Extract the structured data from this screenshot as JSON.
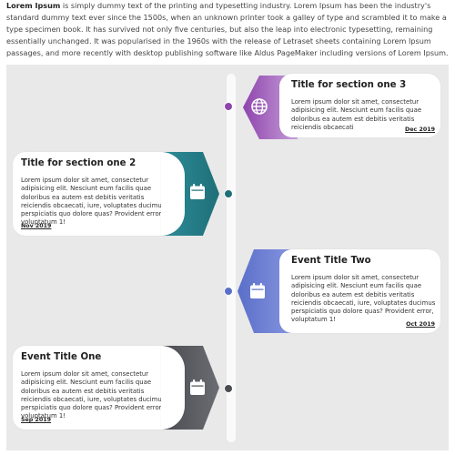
{
  "intro": {
    "lead": "Lorem Ipsum",
    "rest": " is simply dummy text of the printing and typesetting industry. Lorem Ipsum has been the industry's standard dummy text ever since the 1500s, when an unknown printer took a galley of type and scrambled it to make a type specimen book. It has survived not only five centuries, but also the leap into electronic typesetting, remaining essentially unchanged. It was popularised in the 1960s with the release of Letraset sheets containing Lorem Ipsum passages, and more recently with desktop publishing software like Aldus PageMaker including versions of Lorem Ipsum."
  },
  "events": [
    {
      "title": "Title for section one 3",
      "body": "Lorem ipsum dolor sit amet, consectetur adipisicing elit. Nesciunt eum facilis quae doloribus ea autem est debitis veritatis reiciendis obcaecati",
      "date": "Dec 2019",
      "icon": "globe-icon",
      "color_from": "#9c59b6",
      "color_to": "#c79fd8",
      "dot_color": "#8e44ad"
    },
    {
      "title": "Title for section one 2",
      "body": "Lorem ipsum dolor sit amet, consectetur adipisicing elit. Nesciunt eum facilis quae doloribus ea autem est debitis veritatis reiciendis obcaecati, iure, voluptates ducimus perspiciatis quo dolore quas? Provident error, voluptatum 1!",
      "date": "Nov 2019",
      "icon": "calendar-icon",
      "color_from": "#2c8c99",
      "color_to": "#1f6f78",
      "dot_color": "#1f6f78"
    },
    {
      "title": "Event Title Two",
      "body": "Lorem ipsum dolor sit amet, consectetur adipisicing elit. Nesciunt eum facilis quae doloribus ea autem est debitis veritatis reiciendis obcaecati, iure, voluptates ducimus perspiciatis quo dolore quas? Provident error, voluptatum 1!",
      "date": "Oct 2019",
      "icon": "calendar-icon",
      "color_from": "#5a6fc9",
      "color_to": "#8d9ae3",
      "dot_color": "#5a6fc9"
    },
    {
      "title": "Event Title One",
      "body": "Lorem ipsum dolor sit amet, consectetur adipisicing elit. Nesciunt eum facilis quae doloribus ea autem est debitis veritatis reiciendis obcaecati, iure, voluptates ducimus perspiciatis quo dolore quas? Provident error, voluptatum 1!",
      "date": "Sep 2019",
      "icon": "calendar-icon",
      "color_from": "#4a4c52",
      "color_to": "#6b6d73",
      "dot_color": "#4a4c52"
    }
  ]
}
